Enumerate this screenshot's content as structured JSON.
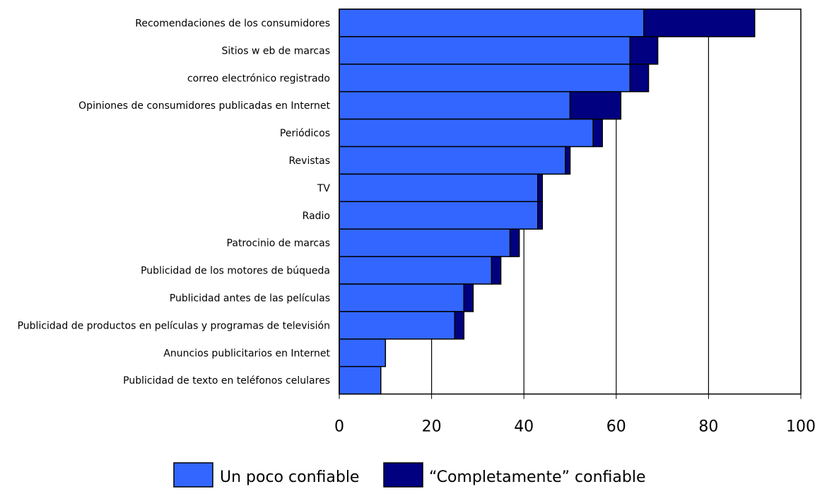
{
  "chart_data": {
    "type": "bar",
    "orientation": "horizontal",
    "stacked": true,
    "categories": [
      "Recomendaciones de los consumidores",
      "Sitios w eb de marcas",
      "correo electrónico registrado",
      "Opiniones de consumidores publicadas en Internet",
      "Periódicos",
      "Revistas",
      "TV",
      "Radio",
      "Patrocinio de marcas",
      "Publicidad de los motores de búqueda",
      "Publicidad antes de las películas",
      "Publicidad de productos en películas y programas de televisión",
      "Anuncios publicitarios en Internet",
      "Publicidad de texto en teléfonos celulares"
    ],
    "series": [
      {
        "name": "Un poco confiable",
        "color": "#3366FF",
        "values": [
          66,
          63,
          63,
          50,
          55,
          49,
          43,
          43,
          37,
          33,
          27,
          25,
          10,
          9
        ]
      },
      {
        "name": "“Completamente” confiable",
        "color": "#000080",
        "values": [
          24,
          6,
          4,
          11,
          2,
          1,
          1,
          1,
          2,
          2,
          2,
          2,
          0,
          0
        ]
      }
    ],
    "xlim": [
      0,
      100
    ],
    "xticks": [
      "0",
      "20",
      "40",
      "60",
      "80",
      "100"
    ],
    "grid": "vertical",
    "legend": "bottom"
  }
}
